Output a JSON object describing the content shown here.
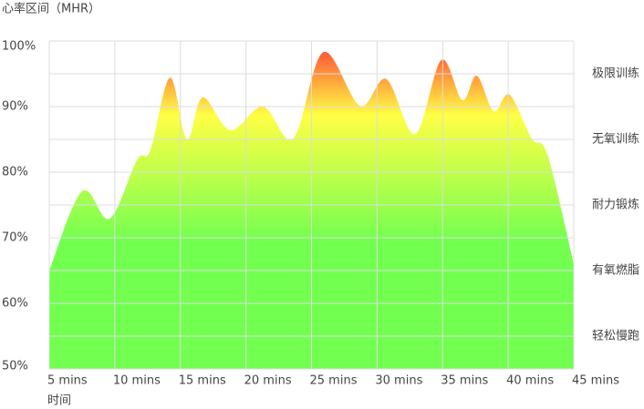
{
  "chart_data": {
    "type": "area",
    "title": "心率区间（MHR）",
    "xlabel": "时间",
    "x": [
      5,
      7.5,
      9.6,
      11.7,
      12.7,
      14.2,
      15.5,
      16.7,
      18.8,
      21.3,
      23.6,
      25.9,
      28.7,
      30.7,
      32.9,
      34.9,
      36.5,
      37.6,
      38.9,
      40.1,
      41.8,
      43,
      45
    ],
    "values": [
      65,
      77.1,
      72.9,
      81.9,
      83.3,
      94.4,
      85,
      91.4,
      86.4,
      90,
      85.1,
      98.3,
      90.1,
      94.2,
      85.8,
      97.1,
      91,
      94.7,
      89.3,
      91.8,
      85.1,
      82.6,
      66
    ],
    "colors": [
      "#ff5a36",
      "#ffff45",
      "#73ff50"
    ],
    "xlim": [
      5,
      45
    ],
    "xticks": [
      {
        "value": 5,
        "label": "5 mins"
      },
      {
        "value": 10,
        "label": "10 mins"
      },
      {
        "value": 15,
        "label": "15 mins"
      },
      {
        "value": 20,
        "label": "20 mins"
      },
      {
        "value": 25,
        "label": "25 mins"
      },
      {
        "value": 30,
        "label": "30 mins"
      },
      {
        "value": 35,
        "label": "35 mins"
      },
      {
        "value": 40,
        "label": "40 mins"
      },
      {
        "value": 45,
        "label": "45 mins"
      }
    ],
    "ylim": [
      50,
      100
    ],
    "yticks": [
      {
        "value": 50,
        "label": "50%"
      },
      {
        "value": 60,
        "label": "60%"
      },
      {
        "value": 70,
        "label": "70%"
      },
      {
        "value": 80,
        "label": "80%"
      },
      {
        "value": 90,
        "label": "90%"
      },
      {
        "value": 100,
        "label": "100%"
      }
    ],
    "minor_yticks": [
      55,
      65,
      75,
      85,
      95
    ],
    "grid": true,
    "zones": [
      {
        "value": 95,
        "label": "极限训练"
      },
      {
        "value": 85,
        "label": "无氧训练"
      },
      {
        "value": 75,
        "label": "耐力锻炼"
      },
      {
        "value": 65,
        "label": "有氧燃脂"
      },
      {
        "value": 55,
        "label": "轻松慢跑"
      }
    ]
  }
}
